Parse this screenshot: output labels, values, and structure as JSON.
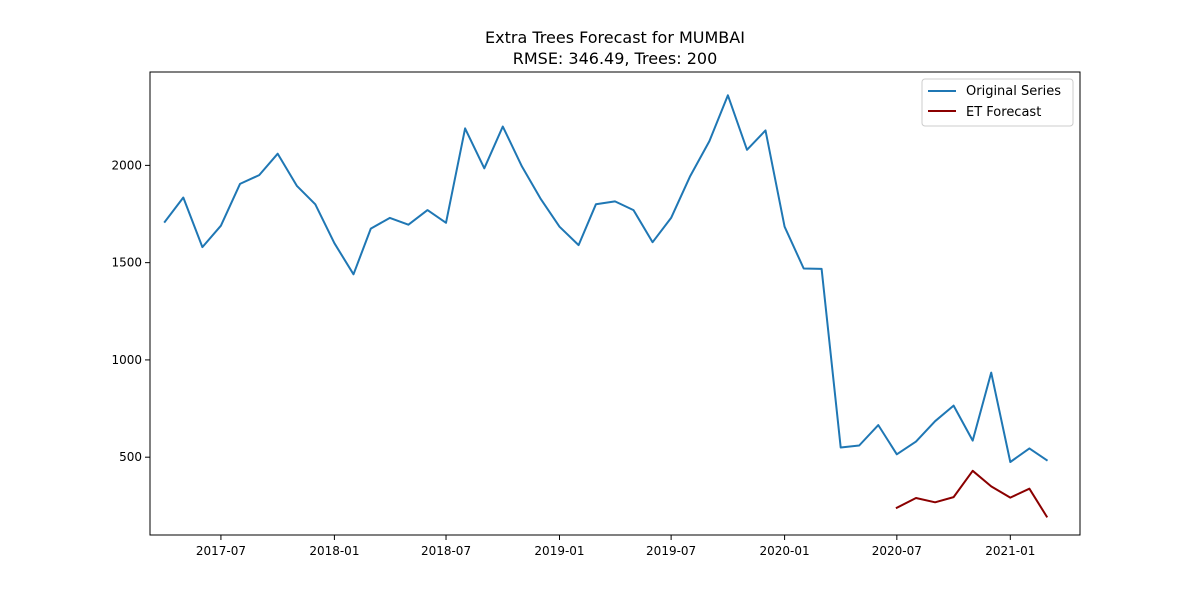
{
  "chart_data": {
    "type": "line",
    "title": "Extra Trees Forecast for MUMBAI",
    "subtitle": "RMSE: 346.49, Trees: 200",
    "xlabel": "",
    "ylabel": "",
    "xlim": [
      "2017-03-08",
      "2021-04-24"
    ],
    "ylim": [
      100,
      2480
    ],
    "x_ticks": [
      "2017-07",
      "2018-01",
      "2018-07",
      "2019-01",
      "2019-07",
      "2020-01",
      "2020-07",
      "2021-01"
    ],
    "y_ticks": [
      500,
      1000,
      1500,
      2000
    ],
    "legend_position": "top-right",
    "grid": false,
    "series": [
      {
        "name": "Original Series",
        "color": "#1f77b4",
        "x": [
          "2017-04-01",
          "2017-05-01",
          "2017-06-01",
          "2017-07-01",
          "2017-08-01",
          "2017-09-01",
          "2017-10-01",
          "2017-11-01",
          "2017-12-01",
          "2018-01-01",
          "2018-02-01",
          "2018-03-01",
          "2018-04-01",
          "2018-05-01",
          "2018-06-01",
          "2018-07-01",
          "2018-08-01",
          "2018-09-01",
          "2018-10-01",
          "2018-11-01",
          "2018-12-01",
          "2019-01-01",
          "2019-02-01",
          "2019-03-01",
          "2019-04-01",
          "2019-05-01",
          "2019-06-01",
          "2019-07-01",
          "2019-08-01",
          "2019-09-01",
          "2019-10-01",
          "2019-11-01",
          "2019-12-01",
          "2020-01-01",
          "2020-02-01",
          "2020-03-01",
          "2020-04-01",
          "2020-05-01",
          "2020-06-01",
          "2020-07-01",
          "2020-08-01",
          "2020-09-01",
          "2020-10-01",
          "2020-11-01",
          "2020-12-01",
          "2021-01-01",
          "2021-02-01",
          "2021-03-01"
        ],
        "values": [
          1710,
          1835,
          1580,
          1690,
          1905,
          1950,
          2060,
          1895,
          1800,
          1600,
          1440,
          1675,
          1730,
          1695,
          1770,
          1705,
          2190,
          1985,
          2200,
          1995,
          1830,
          1685,
          1590,
          1800,
          1815,
          1770,
          1605,
          1730,
          1945,
          2125,
          2360,
          2080,
          2180,
          1685,
          1470,
          1468,
          550,
          560,
          665,
          515,
          580,
          685,
          765,
          585,
          935,
          475,
          545,
          485
        ]
      },
      {
        "name": "ET Forecast",
        "color": "#8b0000",
        "x": [
          "2020-07-01",
          "2020-08-01",
          "2020-09-01",
          "2020-10-01",
          "2020-11-01",
          "2020-12-01",
          "2021-01-01",
          "2021-02-01",
          "2021-03-01"
        ],
        "values": [
          240,
          290,
          268,
          295,
          430,
          350,
          292,
          338,
          195
        ]
      }
    ]
  }
}
